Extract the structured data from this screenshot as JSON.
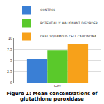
{
  "chart_data": {
    "type": "bar",
    "title": "Figure 1: Mean concentrations of glutathione peroxidase",
    "categories": [
      "GPx"
    ],
    "series": [
      {
        "name": "CONTROL",
        "color": "#3a7fd5",
        "values": [
          5.3
        ]
      },
      {
        "name": "POTENTIALLY MALIGNANT DISORDER",
        "color": "#5ac92b",
        "values": [
          7.3
        ]
      },
      {
        "name": "ORAL SQUAMOUS CELL CARCINOMA",
        "color": "#f7a11a",
        "values": [
          8.7
        ]
      }
    ],
    "ylim": [
      0,
      10
    ],
    "yticks": [
      0,
      2.5,
      5,
      7.5,
      10
    ],
    "grid": true,
    "legend": "top right"
  }
}
